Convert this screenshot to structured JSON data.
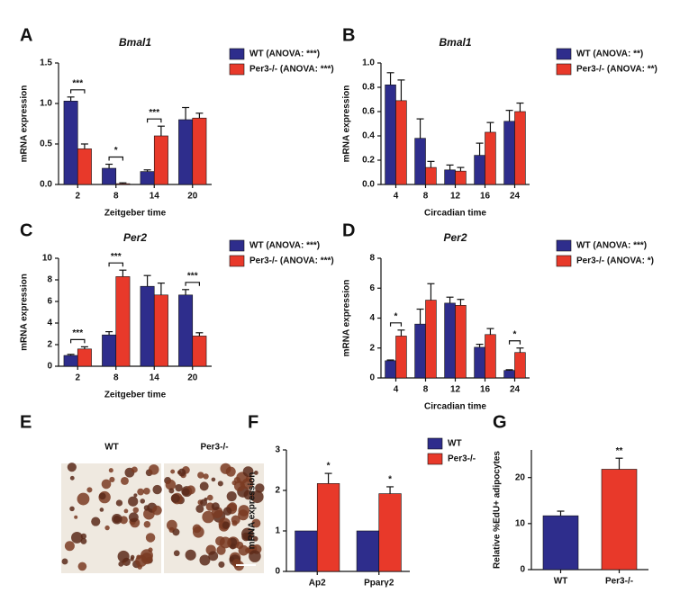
{
  "chart_data": [
    {
      "type": "bar",
      "panel": "A",
      "title": "Bmal1",
      "x_label": "Zeitgeber time",
      "y_label": "mRNA expression",
      "categories": [
        "2",
        "8",
        "14",
        "20"
      ],
      "series": [
        {
          "name": "WT (ANOVA: ***)",
          "color": "#2e2d8c",
          "values": [
            1.03,
            0.2,
            0.16,
            0.8
          ],
          "errors": [
            0.05,
            0.05,
            0.02,
            0.15
          ]
        },
        {
          "name": "Per3-/- (ANOVA: ***)",
          "color": "#e8392a",
          "values": [
            0.44,
            0.01,
            0.6,
            0.82
          ],
          "errors": [
            0.06,
            0.01,
            0.12,
            0.06
          ]
        }
      ],
      "ylim": [
        0,
        1.5
      ],
      "yticks": [
        {
          "value": 0,
          "label": "0.0"
        },
        {
          "value": 0.5,
          "label": "0.5"
        },
        {
          "value": 1,
          "label": "1.0"
        },
        {
          "value": 1.5,
          "label": "1.5"
        }
      ],
      "annotations": [
        "***",
        "*",
        "***",
        null
      ],
      "brackets": true
    },
    {
      "type": "bar",
      "panel": "B",
      "title": "Bmal1",
      "x_label": "Circadian time",
      "y_label": "mRNA expression",
      "categories": [
        "4",
        "8",
        "12",
        "16",
        "24"
      ],
      "series": [
        {
          "name": "WT (ANOVA: **)",
          "color": "#2e2d8c",
          "values": [
            0.82,
            0.38,
            0.12,
            0.24,
            0.52
          ],
          "errors": [
            0.1,
            0.16,
            0.04,
            0.1,
            0.09
          ]
        },
        {
          "name": "Per3-/- (ANOVA: **)",
          "color": "#e8392a",
          "values": [
            0.69,
            0.14,
            0.11,
            0.43,
            0.6
          ],
          "errors": [
            0.17,
            0.05,
            0.03,
            0.08,
            0.07
          ]
        }
      ],
      "ylim": [
        0,
        1
      ],
      "yticks": [
        {
          "value": 0,
          "label": "0.0"
        },
        {
          "value": 0.2,
          "label": "0.2"
        },
        {
          "value": 0.4,
          "label": "0.4"
        },
        {
          "value": 0.6,
          "label": "0.6"
        },
        {
          "value": 0.8,
          "label": "0.8"
        },
        {
          "value": 1,
          "label": "1.0"
        }
      ]
    },
    {
      "type": "bar",
      "panel": "C",
      "title": "Per2",
      "x_label": "Zeitgeber time",
      "y_label": "mRNA expression",
      "categories": [
        "2",
        "8",
        "14",
        "20"
      ],
      "series": [
        {
          "name": "WT (ANOVA: ***)",
          "color": "#2e2d8c",
          "values": [
            1.0,
            2.9,
            7.4,
            6.6
          ],
          "errors": [
            0.1,
            0.3,
            1.0,
            0.5
          ]
        },
        {
          "name": "Per3-/- (ANOVA: ***)",
          "color": "#e8392a",
          "values": [
            1.6,
            8.3,
            6.6,
            2.8
          ],
          "errors": [
            0.2,
            0.6,
            1.1,
            0.3
          ]
        }
      ],
      "ylim": [
        0,
        10
      ],
      "yticks": [
        0,
        2,
        4,
        6,
        8,
        10
      ],
      "annotations": [
        "***",
        "***",
        null,
        "***"
      ],
      "brackets": true
    },
    {
      "type": "bar",
      "panel": "D",
      "title": "Per2",
      "x_label": "Circadian time",
      "y_label": "mRNA expression",
      "categories": [
        "4",
        "8",
        "12",
        "16",
        "24"
      ],
      "series": [
        {
          "name": "WT (ANOVA: ***)",
          "color": "#2e2d8c",
          "values": [
            1.15,
            3.6,
            5.0,
            2.05,
            0.5
          ],
          "errors": [
            0.05,
            1.0,
            0.4,
            0.2,
            0.05
          ]
        },
        {
          "name": "Per3-/-  (ANOVA: *)",
          "color": "#e8392a",
          "values": [
            2.8,
            5.2,
            4.85,
            2.9,
            1.7
          ],
          "errors": [
            0.4,
            1.1,
            0.4,
            0.4,
            0.3
          ]
        }
      ],
      "ylim": [
        0,
        8
      ],
      "yticks": [
        0,
        2,
        4,
        6,
        8
      ],
      "annotations": [
        "*",
        null,
        null,
        null,
        "*"
      ],
      "brackets": true
    },
    {
      "type": "bar",
      "panel": "F",
      "y_label": "mRNA expression",
      "categories": [
        "Ap2",
        "Pparγ2"
      ],
      "series": [
        {
          "name": "WT",
          "color": "#2e2d8c",
          "values": [
            1,
            1
          ],
          "errors": [
            null,
            null
          ]
        },
        {
          "name": "Per3-/-",
          "color": "#e8392a",
          "values": [
            2.17,
            1.92
          ],
          "errors": [
            0.25,
            0.17
          ]
        }
      ],
      "ylim": [
        0,
        3
      ],
      "yticks": [
        0,
        1,
        2,
        3
      ],
      "annotations": [
        "*",
        "*"
      ],
      "brackets": false
    },
    {
      "type": "bar",
      "panel": "G",
      "y_label": "Relative %EdU+ adipocytes",
      "categories": [
        "WT",
        "Per3-/-"
      ],
      "series": [
        {
          "colors": [
            "#2e2d8c",
            "#e8392a"
          ],
          "values": [
            11.7,
            21.8
          ],
          "errors": [
            1.0,
            2.4
          ]
        }
      ],
      "ylim": [
        0,
        26
      ],
      "yticks": [
        0,
        10,
        20
      ],
      "annotations": [
        null,
        "**"
      ],
      "brackets": false
    }
  ],
  "image_panel": {
    "panel": "E",
    "labels": [
      "WT",
      "Per3-/-"
    ]
  }
}
